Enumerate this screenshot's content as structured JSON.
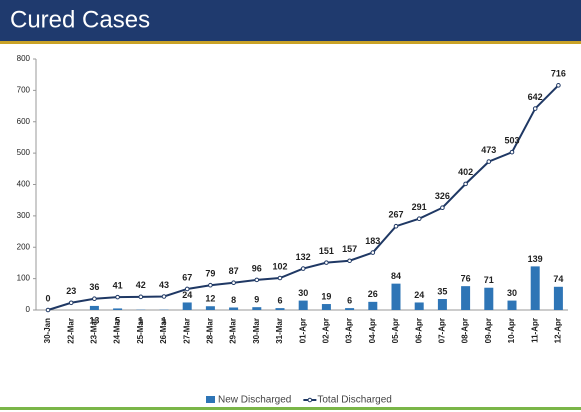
{
  "chart_data": {
    "type": "bar_line",
    "title": "Cured Cases",
    "categories": [
      "30-Jan",
      "22-Mar",
      "23-Mar",
      "24-Mar",
      "25-Mar",
      "26-Mar",
      "27-Mar",
      "28-Mar",
      "29-Mar",
      "30-Mar",
      "31-Mar",
      "01-Apr",
      "02-Apr",
      "03-Apr",
      "04-Apr",
      "05-Apr",
      "06-Apr",
      "07-Apr",
      "08-Apr",
      "09-Apr",
      "10-Apr",
      "11-Apr",
      "12-Apr"
    ],
    "series": [
      {
        "name": "New Discharged",
        "type": "bar",
        "color": "#2e75b6",
        "values": [
          null,
          null,
          13,
          5,
          1,
          1,
          24,
          12,
          8,
          9,
          6,
          30,
          19,
          6,
          26,
          84,
          24,
          35,
          76,
          71,
          30,
          139,
          74
        ]
      },
      {
        "name": "Total Discharged",
        "type": "line",
        "color": "#1f3864",
        "values": [
          0,
          23,
          36,
          41,
          42,
          43,
          67,
          79,
          87,
          96,
          102,
          132,
          151,
          157,
          183,
          267,
          291,
          326,
          402,
          473,
          503,
          642,
          716
        ]
      }
    ],
    "ylim": [
      0,
      800
    ],
    "yticks": [
      0,
      100,
      200,
      300,
      400,
      500,
      600,
      700,
      800
    ],
    "grid": false,
    "legend": "bottom"
  }
}
